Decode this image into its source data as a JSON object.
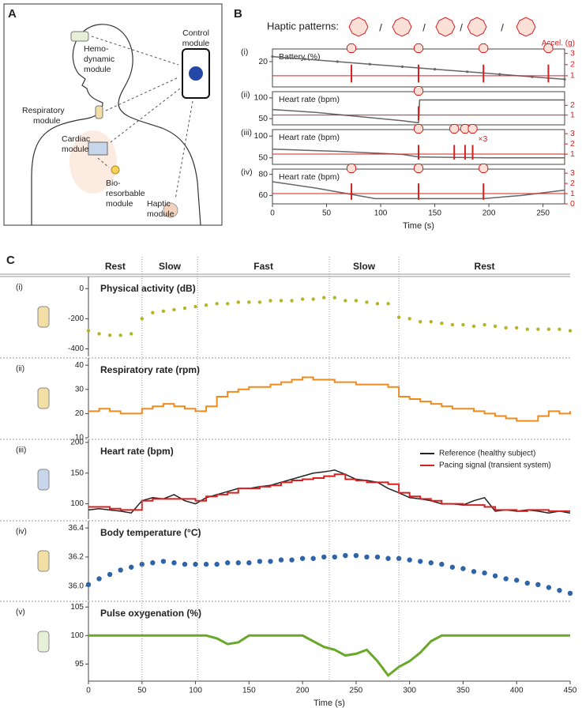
{
  "panel_a": {
    "label": "A",
    "modules": [
      {
        "lines": [
          "Hemo-",
          "dynamic",
          "module"
        ]
      },
      {
        "lines": [
          "Control",
          "module"
        ]
      },
      {
        "lines": [
          "Respiratory",
          "module"
        ]
      },
      {
        "lines": [
          "Cardiac",
          "module"
        ]
      },
      {
        "lines": [
          "Bio-",
          "resorbable",
          "module"
        ]
      },
      {
        "lines": [
          "Haptic",
          "module"
        ]
      }
    ]
  },
  "panel_b": {
    "label": "B",
    "haptic_label": "Haptic patterns:",
    "separator": "/",
    "y2_label": "Accel. (g)"
  },
  "panel_c": {
    "label": "C",
    "phases": [
      {
        "name": "Rest",
        "start": 0,
        "end": 50
      },
      {
        "name": "Slow",
        "start": 50,
        "end": 102
      },
      {
        "name": "Fast",
        "start": 102,
        "end": 225
      },
      {
        "name": "Slow",
        "start": 225,
        "end": 290
      },
      {
        "name": "Rest",
        "start": 290,
        "end": 450
      }
    ]
  },
  "chart_data": [
    {
      "type": "line",
      "label": "(i)",
      "title": "Battery (%)",
      "xlim": [
        0,
        270
      ],
      "ylim": [
        10,
        25
      ],
      "yticks": [
        20
      ],
      "y2lim": [
        0,
        3.4
      ],
      "y2ticks": [
        1,
        2,
        3
      ],
      "series": [
        {
          "color": "#666666",
          "style": "line",
          "marker": true,
          "x": [
            0,
            30,
            60,
            90,
            120,
            150,
            180,
            210,
            240,
            270
          ],
          "values": [
            22,
            21,
            20,
            19,
            18,
            17,
            16,
            15,
            14,
            13
          ]
        },
        {
          "axis": "y2",
          "color": "#d62020",
          "style": "spikes",
          "baseline": 1,
          "x": [
            73,
            135,
            195,
            255
          ],
          "values": [
            2,
            2,
            2,
            2
          ]
        }
      ]
    },
    {
      "type": "line",
      "label": "(ii)",
      "title": "Heart rate (bpm)",
      "xlim": [
        0,
        270
      ],
      "ylim": [
        35,
        115
      ],
      "yticks": [
        50,
        100
      ],
      "y2lim": [
        0,
        3.4
      ],
      "y2ticks": [
        1,
        2
      ],
      "series": [
        {
          "color": "#666666",
          "style": "line",
          "x": [
            0,
            40,
            80,
            120,
            135,
            136,
            200,
            270
          ],
          "values": [
            72,
            65,
            55,
            45,
            40,
            95,
            95,
            95
          ]
        },
        {
          "axis": "y2",
          "color": "#d62020",
          "style": "spikes",
          "baseline": 1,
          "x": [
            135
          ],
          "values": [
            1.9
          ]
        }
      ]
    },
    {
      "type": "line",
      "label": "(iii)",
      "title": "Heart rate (bpm)",
      "xlim": [
        0,
        270
      ],
      "ylim": [
        35,
        115
      ],
      "yticks": [
        50,
        100
      ],
      "y2lim": [
        0,
        3.4
      ],
      "y2ticks": [
        1,
        2,
        3
      ],
      "annotation": "×3",
      "series": [
        {
          "color": "#666666",
          "style": "line",
          "x": [
            0,
            60,
            120,
            135,
            200,
            270
          ],
          "values": [
            70,
            65,
            58,
            52,
            50,
            50
          ]
        },
        {
          "axis": "y2",
          "color": "#d62020",
          "style": "spikes",
          "baseline": 1,
          "x": [
            135,
            168,
            178,
            185
          ],
          "values": [
            1.9,
            1.9,
            1.9,
            1.9
          ]
        }
      ]
    },
    {
      "type": "line",
      "label": "(iv)",
      "title": "Heart rate (bpm)",
      "xlim": [
        0,
        270
      ],
      "ylim": [
        52,
        85
      ],
      "yticks": [
        60,
        80
      ],
      "y2lim": [
        0,
        3.4
      ],
      "y2ticks": [
        0,
        1,
        2,
        3
      ],
      "xticks": [
        0,
        50,
        100,
        150,
        200,
        250
      ],
      "xlabel": "Time (s)",
      "series": [
        {
          "color": "#666666",
          "style": "line",
          "x": [
            0,
            40,
            95,
            195,
            230,
            270
          ],
          "values": [
            73,
            67,
            57,
            57,
            60,
            65
          ]
        },
        {
          "axis": "y2",
          "color": "#d62020",
          "style": "spikes",
          "baseline": 1,
          "x": [
            73,
            135,
            195
          ],
          "values": [
            2,
            2,
            2
          ]
        }
      ]
    },
    {
      "type": "line",
      "label": "(i)",
      "title": "Physical activity (dB)",
      "xlim": [
        0,
        450
      ],
      "ylim": [
        -450,
        80
      ],
      "yticks": [
        0,
        -200,
        -400
      ],
      "x": [
        0,
        10,
        20,
        30,
        40,
        50,
        60,
        70,
        80,
        90,
        100,
        110,
        120,
        130,
        140,
        150,
        160,
        170,
        180,
        190,
        200,
        210,
        220,
        230,
        240,
        250,
        260,
        270,
        280,
        290,
        300,
        310,
        320,
        330,
        340,
        350,
        360,
        370,
        380,
        390,
        400,
        410,
        420,
        430,
        440,
        450
      ],
      "series": [
        {
          "color": "#b5b524",
          "style": "markers",
          "values": [
            -280,
            -300,
            -310,
            -310,
            -300,
            -200,
            -160,
            -150,
            -140,
            -130,
            -120,
            -110,
            -100,
            -100,
            -90,
            -90,
            -90,
            -80,
            -80,
            -80,
            -70,
            -70,
            -60,
            -60,
            -80,
            -80,
            -90,
            -100,
            -100,
            -190,
            -200,
            -220,
            -220,
            -230,
            -240,
            -240,
            -250,
            -240,
            -250,
            -260,
            -260,
            -270,
            -270,
            -270,
            -270,
            -280
          ]
        }
      ]
    },
    {
      "type": "line",
      "label": "(ii)",
      "title": "Respiratory rate (rpm)",
      "xlim": [
        0,
        450
      ],
      "ylim": [
        10,
        43
      ],
      "yticks": [
        10,
        20,
        30,
        40
      ],
      "x": [
        0,
        10,
        20,
        30,
        40,
        50,
        60,
        70,
        80,
        90,
        100,
        110,
        120,
        130,
        140,
        150,
        160,
        170,
        180,
        190,
        200,
        210,
        220,
        230,
        240,
        250,
        260,
        270,
        280,
        290,
        300,
        310,
        320,
        330,
        340,
        350,
        360,
        370,
        380,
        390,
        400,
        410,
        420,
        430,
        440,
        450
      ],
      "series": [
        {
          "color": "#f08a1c",
          "style": "step",
          "values": [
            21,
            22,
            21,
            20,
            20,
            22,
            23,
            24,
            23,
            22,
            21,
            23,
            27,
            29,
            30,
            31,
            31,
            32,
            33,
            34,
            35,
            34,
            34,
            33,
            33,
            32,
            32,
            32,
            31,
            27,
            26,
            25,
            24,
            23,
            22,
            22,
            21,
            20,
            19,
            18,
            17,
            17,
            19,
            21,
            20,
            21
          ]
        }
      ]
    },
    {
      "type": "line",
      "label": "(iii)",
      "title": "Heart rate (bpm)",
      "xlim": [
        0,
        450
      ],
      "ylim": [
        75,
        205
      ],
      "yticks": [
        100,
        150,
        200
      ],
      "legend": "upper right",
      "x": [
        0,
        10,
        20,
        30,
        40,
        50,
        60,
        70,
        80,
        90,
        100,
        110,
        120,
        130,
        140,
        150,
        160,
        170,
        180,
        190,
        200,
        210,
        220,
        230,
        240,
        250,
        260,
        270,
        280,
        290,
        300,
        310,
        320,
        330,
        340,
        350,
        360,
        370,
        380,
        390,
        400,
        410,
        420,
        430,
        440,
        450
      ],
      "series": [
        {
          "name": "Reference (healthy subject)",
          "color": "#222222",
          "style": "line",
          "values": [
            90,
            92,
            90,
            88,
            85,
            105,
            110,
            108,
            115,
            105,
            100,
            110,
            115,
            120,
            125,
            125,
            128,
            130,
            135,
            140,
            145,
            150,
            152,
            155,
            148,
            140,
            138,
            135,
            125,
            118,
            110,
            108,
            105,
            100,
            100,
            98,
            105,
            110,
            88,
            90,
            88,
            90,
            88,
            85,
            88,
            85
          ]
        },
        {
          "name": "Pacing signal (transient system)",
          "color": "#d62020",
          "style": "step",
          "values": [
            95,
            95,
            92,
            90,
            90,
            105,
            108,
            108,
            108,
            108,
            105,
            112,
            115,
            118,
            125,
            125,
            128,
            130,
            135,
            138,
            140,
            142,
            145,
            148,
            140,
            138,
            135,
            135,
            132,
            118,
            112,
            108,
            105,
            100,
            100,
            98,
            98,
            95,
            90,
            90,
            88,
            90,
            90,
            88,
            88,
            88
          ]
        }
      ]
    },
    {
      "type": "line",
      "label": "(iv)",
      "title": "Body temperature (°C)",
      "xlim": [
        0,
        450
      ],
      "ylim": [
        35.9,
        36.45
      ],
      "yticks": [
        {
          "value": 36.0,
          "label": "36.0"
        },
        36.2,
        36.4
      ],
      "x": [
        0,
        10,
        20,
        30,
        40,
        50,
        60,
        70,
        80,
        90,
        100,
        110,
        120,
        130,
        140,
        150,
        160,
        170,
        180,
        190,
        200,
        210,
        220,
        230,
        240,
        250,
        260,
        270,
        280,
        290,
        300,
        310,
        320,
        330,
        340,
        350,
        360,
        370,
        380,
        390,
        400,
        410,
        420,
        430,
        440,
        450
      ],
      "series": [
        {
          "color": "#2f64a8",
          "style": "markers",
          "values": [
            36.01,
            36.05,
            36.08,
            36.11,
            36.13,
            36.15,
            36.16,
            36.17,
            36.16,
            36.15,
            36.15,
            36.15,
            36.15,
            36.16,
            36.16,
            36.16,
            36.17,
            36.17,
            36.18,
            36.18,
            36.19,
            36.19,
            36.2,
            36.2,
            36.21,
            36.21,
            36.2,
            36.2,
            36.19,
            36.19,
            36.18,
            36.17,
            36.16,
            36.15,
            36.13,
            36.12,
            36.1,
            36.09,
            36.07,
            36.05,
            36.04,
            36.02,
            36.01,
            35.99,
            35.97,
            35.95
          ]
        }
      ]
    },
    {
      "type": "line",
      "label": "(v)",
      "title": "Pulse oxygenation (%)",
      "xlim": [
        0,
        450
      ],
      "ylim": [
        92,
        106
      ],
      "yticks": [
        95,
        100,
        105
      ],
      "xticks": [
        0,
        50,
        100,
        150,
        200,
        250,
        300,
        350,
        400,
        450
      ],
      "xlabel": "Time (s)",
      "x": [
        0,
        10,
        20,
        30,
        40,
        50,
        60,
        70,
        80,
        90,
        100,
        110,
        120,
        130,
        140,
        150,
        160,
        170,
        180,
        190,
        200,
        210,
        220,
        230,
        240,
        250,
        260,
        270,
        280,
        290,
        300,
        310,
        320,
        330,
        340,
        350,
        360,
        370,
        380,
        390,
        400,
        410,
        420,
        430,
        440,
        450
      ],
      "series": [
        {
          "color": "#6aa82a",
          "style": "line",
          "width": 3,
          "values": [
            100,
            100,
            100,
            100,
            100,
            100,
            100,
            100,
            100,
            100,
            100,
            100,
            99.5,
            98.5,
            98.8,
            100,
            100,
            100,
            100,
            100,
            100,
            99,
            98,
            97.5,
            96.5,
            96.8,
            97.5,
            95.5,
            93,
            94.5,
            95.5,
            97,
            99,
            100,
            100,
            100,
            100,
            100,
            100,
            100,
            100,
            100,
            100,
            100,
            100,
            100
          ]
        }
      ]
    }
  ]
}
